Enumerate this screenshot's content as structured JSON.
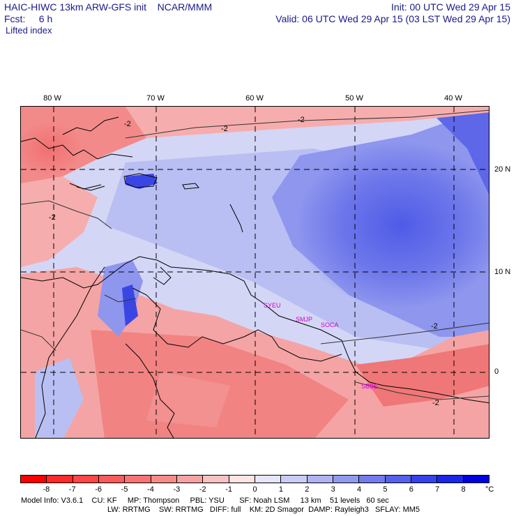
{
  "header": {
    "title_left": "HAIC-HIWC 13km ARW-GFS init    NCAR/MMM",
    "title_right": "Init: 00 UTC Wed 29 Apr 15",
    "forecast": "Fcst:     6 h",
    "valid": "Valid: 06 UTC Wed 29 Apr 15 (03 LST Wed 29 Apr 15)",
    "field": "Lifted index"
  },
  "map": {
    "longitude_labels": [
      "80 W",
      "70 W",
      "60 W",
      "50 W",
      "40 W"
    ],
    "latitude_labels": [
      "20 N",
      "10 N",
      "0"
    ],
    "contour_labels": [
      "-2",
      "-2",
      "-2",
      "-2",
      "-2",
      "-2"
    ],
    "city_labels": [
      "SYEU",
      "SMJP",
      "SOCA",
      "SBBE"
    ]
  },
  "colorbar": {
    "ticks": [
      "-8",
      "-7",
      "-6",
      "-5",
      "-4",
      "-3",
      "-2",
      "-1",
      "0",
      "1",
      "2",
      "3",
      "4",
      "5",
      "6",
      "7",
      "8"
    ],
    "unit": "°C",
    "colors": [
      "#ff0000",
      "#ff2a2a",
      "#ff4545",
      "#fb5b5b",
      "#f87474",
      "#f58b8b",
      "#f5a3a3",
      "#f8c2c2",
      "#fde3e3",
      "#e6e6fa",
      "#c9cdf6",
      "#aeb4f2",
      "#929af0",
      "#737ced",
      "#5560ec",
      "#3643ea",
      "#1a26e8",
      "#0000e0"
    ]
  },
  "model_info": {
    "line1": "Model Info: V3.6.1    CU: KF     MP: Thompson     PBL: YSU       SF: Noah LSM     13 km    51 levels   60 sec",
    "line2": "LW: RRTMG    SW: RRTMG   DIFF: full    KM: 2D Smagor  DAMP: Rayleigh3   SFLAY: MM5"
  }
}
